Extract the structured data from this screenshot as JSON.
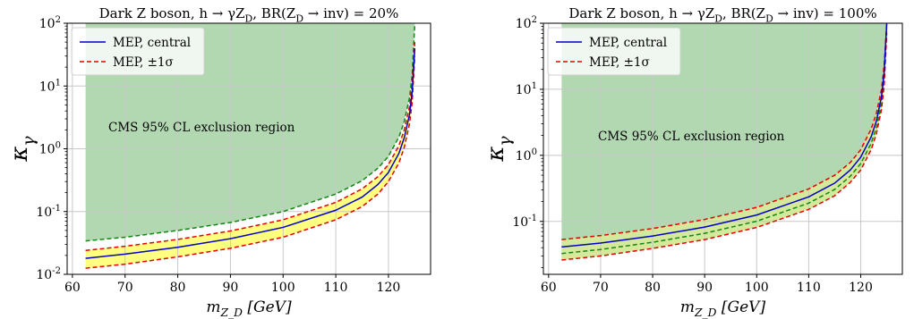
{
  "colors": {
    "exclusion_fill": "#b2d8b2",
    "exclusion_edge": "#118811",
    "band_fill": "#ffff80",
    "central": "#0000cc",
    "sigma": "#e60000",
    "grid": "#c8c8c8"
  },
  "chart_data": [
    {
      "type": "line",
      "title": "Dark Z boson, h → γZ_D, BR(Z_D → inv) = 20%",
      "xlabel": "m_{Z_D} [GeV]",
      "ylabel": "κ_γ",
      "xlim": [
        59,
        128
      ],
      "ylim": [
        0.01,
        100
      ],
      "yscale": "log",
      "grid": true,
      "legend_position": "top-left",
      "x_ticks": [
        "60",
        "70",
        "80",
        "90",
        "100",
        "110",
        "120"
      ],
      "y_ticks": [
        "10^{-2}",
        "10^{-1}",
        "10^{0}",
        "10^{1}",
        "10^{2}"
      ],
      "annotation": "CMS 95% CL exclusion region",
      "series": [
        {
          "name": "MEP, central",
          "style": "solid",
          "color": "#0000cc",
          "x": [
            62.5,
            70,
            80,
            90,
            100,
            110,
            115,
            118,
            120,
            122,
            123,
            124,
            124.5,
            125
          ],
          "y": [
            0.018,
            0.021,
            0.027,
            0.037,
            0.056,
            0.105,
            0.17,
            0.27,
            0.42,
            0.85,
            1.5,
            3.5,
            8,
            40
          ]
        },
        {
          "name": "MEP, ±1σ",
          "style": "dashed",
          "color": "#e60000",
          "x": [
            62.5,
            70,
            80,
            90,
            100,
            110,
            115,
            118,
            120,
            122,
            123,
            124,
            124.5,
            125
          ],
          "y": [
            0.024,
            0.028,
            0.036,
            0.049,
            0.074,
            0.14,
            0.23,
            0.36,
            0.56,
            1.13,
            2.0,
            4.7,
            11,
            50
          ]
        },
        {
          "style": "dashed",
          "color": "#e60000",
          "x": [
            62.5,
            70,
            80,
            90,
            100,
            110,
            115,
            118,
            120,
            122,
            123,
            124,
            124.5,
            125
          ],
          "y": [
            0.0125,
            0.0145,
            0.019,
            0.026,
            0.039,
            0.074,
            0.12,
            0.19,
            0.3,
            0.6,
            1.05,
            2.5,
            5.5,
            30
          ]
        }
      ],
      "exclusion_boundary": {
        "x": [
          62.5,
          70,
          80,
          90,
          100,
          110,
          115,
          118,
          120,
          122,
          123,
          124,
          124.5,
          125
        ],
        "y": [
          0.034,
          0.039,
          0.05,
          0.067,
          0.1,
          0.19,
          0.31,
          0.49,
          0.76,
          1.55,
          2.7,
          6.5,
          15,
          100
        ]
      }
    },
    {
      "type": "line",
      "title": "Dark Z boson, h → γZ_D, BR(Z_D → inv) = 100%",
      "xlabel": "m_{Z_D} [GeV]",
      "ylabel": "κ_γ",
      "xlim": [
        59,
        128
      ],
      "ylim": [
        0.0158,
        100
      ],
      "yscale": "log",
      "grid": true,
      "legend_position": "top-left",
      "x_ticks": [
        "60",
        "70",
        "80",
        "90",
        "100",
        "110",
        "120"
      ],
      "y_ticks": [
        "10^{-1}",
        "10^{0}",
        "10^{1}",
        "10^{2}"
      ],
      "annotation": "CMS 95% CL exclusion region",
      "series": [
        {
          "name": "MEP, central",
          "style": "solid",
          "color": "#0000cc",
          "x": [
            62.5,
            70,
            80,
            90,
            100,
            110,
            115,
            118,
            120,
            122,
            123,
            124,
            124.5,
            125
          ],
          "y": [
            0.041,
            0.047,
            0.06,
            0.082,
            0.125,
            0.235,
            0.38,
            0.6,
            0.94,
            1.9,
            3.3,
            7.8,
            18,
            100
          ]
        },
        {
          "name": "MEP, ±1σ",
          "style": "dashed",
          "color": "#e60000",
          "x": [
            62.5,
            70,
            80,
            90,
            100,
            110,
            115,
            118,
            120,
            122,
            123,
            124,
            124.5,
            125
          ],
          "y": [
            0.053,
            0.061,
            0.078,
            0.107,
            0.163,
            0.31,
            0.5,
            0.78,
            1.22,
            2.5,
            4.3,
            10,
            23,
            100
          ]
        },
        {
          "style": "dashed",
          "color": "#e60000",
          "x": [
            62.5,
            70,
            80,
            90,
            100,
            110,
            115,
            118,
            120,
            122,
            123,
            124,
            124.5,
            125
          ],
          "y": [
            0.026,
            0.03,
            0.039,
            0.053,
            0.081,
            0.152,
            0.245,
            0.39,
            0.6,
            1.22,
            2.1,
            5.0,
            11.5,
            70
          ]
        }
      ],
      "exclusion_boundary": {
        "x": [
          62.5,
          70,
          80,
          90,
          100,
          110,
          115,
          118,
          120,
          122,
          123,
          124,
          124.5,
          125
        ],
        "y": [
          0.034,
          0.039,
          0.05,
          0.067,
          0.1,
          0.19,
          0.31,
          0.49,
          0.76,
          1.55,
          2.7,
          6.5,
          15,
          100
        ]
      }
    }
  ]
}
